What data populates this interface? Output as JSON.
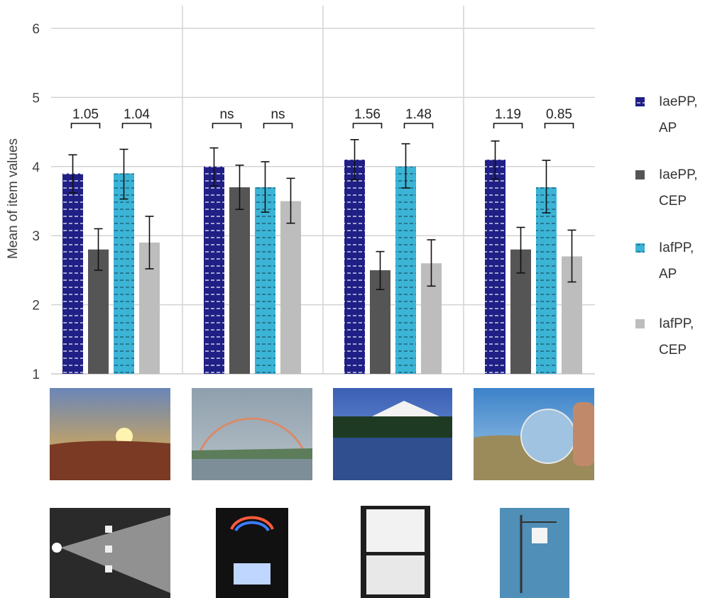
{
  "chart_data": {
    "type": "bar",
    "ylabel": "Mean of item values",
    "ylim": [
      1,
      6
    ],
    "yticks": [
      "1",
      "2",
      "3",
      "4",
      "5",
      "6"
    ],
    "grid": true,
    "legend_position": "right",
    "groups": [
      {
        "values": [
          3.9,
          2.8,
          3.9,
          2.9
        ],
        "err_low": [
          3.62,
          2.5,
          3.53,
          2.52
        ],
        "err_high": [
          4.17,
          3.1,
          4.25,
          3.28
        ],
        "comparisons": [
          "1.05",
          "1.04"
        ]
      },
      {
        "values": [
          4.0,
          3.7,
          3.7,
          3.5
        ],
        "err_low": [
          3.72,
          3.38,
          3.34,
          3.18
        ],
        "err_high": [
          4.27,
          4.02,
          4.07,
          3.83
        ],
        "comparisons": [
          "ns",
          "ns"
        ]
      },
      {
        "values": [
          4.1,
          2.5,
          4.0,
          2.6
        ],
        "err_low": [
          3.81,
          2.22,
          3.69,
          2.27
        ],
        "err_high": [
          4.39,
          2.77,
          4.33,
          2.94
        ],
        "comparisons": [
          "1.56",
          "1.48"
        ]
      },
      {
        "values": [
          4.1,
          2.8,
          3.7,
          2.7
        ],
        "err_low": [
          3.82,
          2.46,
          3.33,
          2.33
        ],
        "err_high": [
          4.37,
          3.12,
          4.09,
          3.08
        ],
        "comparisons": [
          "1.19",
          "0.85"
        ]
      }
    ],
    "series": [
      {
        "name_line1": "IaePP,",
        "name_line2": "AP",
        "color": "#1f1f86",
        "pattern": "dashed-white"
      },
      {
        "name_line1": "IaePP,",
        "name_line2": "CEP",
        "color": "#555555",
        "pattern": "solid"
      },
      {
        "name_line1": "IafPP,",
        "name_line2": "AP",
        "color": "#3bb4d6",
        "pattern": "dashed-dark"
      },
      {
        "name_line1": "IafPP,",
        "name_line2": "CEP",
        "color": "#bdbdbd",
        "pattern": "solid"
      }
    ]
  },
  "images": {
    "row1": [
      {
        "name": "sunset-photo",
        "sky_top": "#6a86b8",
        "sky_bottom": "#f2b23a",
        "ground": "#7a3a24"
      },
      {
        "name": "rainbow-photo",
        "sky_top": "#8fa0ad",
        "sky_bottom": "#b7c2c9",
        "ground": "#5d7d5a"
      },
      {
        "name": "mountain-lake-photo",
        "sky_top": "#3b5fb5",
        "sky_bottom": "#7fa6df",
        "ground": "#1f3a22"
      },
      {
        "name": "glass-ball-photo",
        "sky_top": "#3c83c9",
        "sky_bottom": "#a8cbe9",
        "ground": "#9b8a5a"
      }
    ],
    "row2": [
      {
        "name": "light-beams-photo",
        "bg": "#2a2a2a"
      },
      {
        "name": "prism-rainbow-photo",
        "bg": "#111111"
      },
      {
        "name": "letter-f-mirror-photo",
        "bg": "#1e1e1e"
      },
      {
        "name": "lab-stand-photo",
        "bg": "#4f8fb8"
      }
    ]
  }
}
